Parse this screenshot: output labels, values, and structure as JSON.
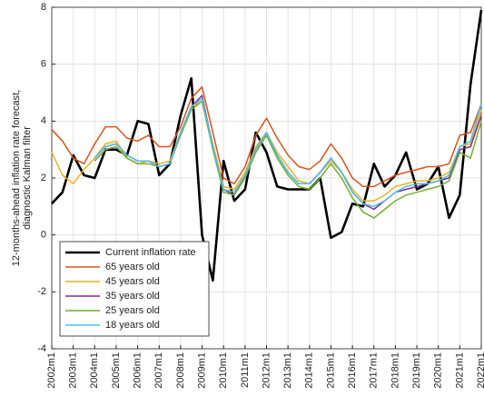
{
  "chart_data": {
    "type": "line",
    "ylabel": [
      "12-months-ahead inflation rate forecast,",
      "diagnostic Kalman filter"
    ],
    "x": [
      2002,
      2002.5,
      2003,
      2003.5,
      2004,
      2004.5,
      2005,
      2005.5,
      2006,
      2006.5,
      2007,
      2007.5,
      2008,
      2008.5,
      2009,
      2009.5,
      2010,
      2010.5,
      2011,
      2011.5,
      2012,
      2012.5,
      2013,
      2013.5,
      2014,
      2014.5,
      2015,
      2015.5,
      2016,
      2016.5,
      2017,
      2017.5,
      2018,
      2018.5,
      2019,
      2019.5,
      2020,
      2020.5,
      2021,
      2021.5,
      2022
    ],
    "series": [
      {
        "name": "Current inflation rate",
        "color": "#000000",
        "width": 2.6,
        "values": [
          1.1,
          1.5,
          2.8,
          2.1,
          2.0,
          3.0,
          3.0,
          2.8,
          4.0,
          3.9,
          2.1,
          2.5,
          4.2,
          5.5,
          0.0,
          -1.6,
          2.6,
          1.2,
          1.6,
          3.6,
          2.9,
          1.7,
          1.6,
          1.6,
          1.6,
          2.0,
          -0.1,
          0.1,
          1.1,
          1.0,
          2.5,
          1.7,
          2.1,
          2.9,
          1.6,
          1.8,
          2.4,
          0.6,
          1.4,
          5.3,
          7.9
        ]
      },
      {
        "name": "65 years old",
        "color": "#d95319",
        "width": 1.5,
        "values": [
          3.7,
          3.3,
          2.7,
          2.5,
          3.2,
          3.8,
          3.8,
          3.4,
          3.3,
          3.5,
          3.1,
          3.1,
          3.8,
          4.8,
          5.2,
          3.6,
          2.0,
          1.8,
          2.4,
          3.5,
          4.1,
          3.4,
          2.8,
          2.4,
          2.3,
          2.6,
          3.2,
          2.7,
          2.0,
          1.7,
          1.7,
          1.9,
          2.1,
          2.2,
          2.3,
          2.4,
          2.4,
          2.5,
          3.5,
          3.6,
          4.6
        ]
      },
      {
        "name": "45 years old",
        "color": "#edb120",
        "width": 1.5,
        "values": [
          2.9,
          2.1,
          1.8,
          2.3,
          2.7,
          3.2,
          3.3,
          2.7,
          2.5,
          2.6,
          2.5,
          2.6,
          3.6,
          4.5,
          4.7,
          3.2,
          1.7,
          1.6,
          2.2,
          3.1,
          3.6,
          2.9,
          2.4,
          1.9,
          1.8,
          2.2,
          2.6,
          2.2,
          1.6,
          1.2,
          1.2,
          1.4,
          1.7,
          1.8,
          1.9,
          1.9,
          2.0,
          2.2,
          3.1,
          3.2,
          4.4
        ]
      },
      {
        "name": "35 years old",
        "color": "#7e2f8e",
        "width": 1.5,
        "values": [
          null,
          null,
          null,
          null,
          2.7,
          3.1,
          3.2,
          2.8,
          2.6,
          2.6,
          2.4,
          2.5,
          3.6,
          4.5,
          4.9,
          3.1,
          1.6,
          1.4,
          2.1,
          3.0,
          3.6,
          2.8,
          2.2,
          1.8,
          1.8,
          2.2,
          2.7,
          2.2,
          1.5,
          1.1,
          0.9,
          1.2,
          1.5,
          1.6,
          1.7,
          1.8,
          1.9,
          2.0,
          3.0,
          3.1,
          4.2
        ]
      },
      {
        "name": "25 years old",
        "color": "#77ac30",
        "width": 1.5,
        "values": [
          null,
          null,
          null,
          null,
          2.6,
          3.0,
          3.1,
          2.7,
          2.5,
          2.5,
          2.4,
          2.5,
          3.5,
          4.4,
          4.7,
          3.0,
          1.5,
          1.4,
          2.0,
          2.9,
          3.5,
          2.7,
          2.1,
          1.7,
          1.6,
          2.0,
          2.5,
          2.0,
          1.3,
          0.8,
          0.6,
          0.9,
          1.2,
          1.4,
          1.5,
          1.6,
          1.7,
          1.9,
          2.9,
          2.7,
          4.0
        ]
      },
      {
        "name": "18 years old",
        "color": "#4dbeee",
        "width": 1.5,
        "values": [
          null,
          null,
          null,
          null,
          2.7,
          3.1,
          3.2,
          2.8,
          2.6,
          2.6,
          2.4,
          2.5,
          3.6,
          4.5,
          4.8,
          3.1,
          1.6,
          1.5,
          2.1,
          3.0,
          3.6,
          2.8,
          2.2,
          1.8,
          1.8,
          2.2,
          2.7,
          2.2,
          1.5,
          1.1,
          1.0,
          1.2,
          1.5,
          1.7,
          1.8,
          1.8,
          1.9,
          2.1,
          3.1,
          3.3,
          4.6
        ]
      }
    ],
    "xlim": [
      2002,
      2022
    ],
    "xticks": [
      {
        "value": 2002,
        "label": "2002m1"
      },
      {
        "value": 2003,
        "label": "2003m1"
      },
      {
        "value": 2004,
        "label": "2004m1"
      },
      {
        "value": 2005,
        "label": "2005m1"
      },
      {
        "value": 2006,
        "label": "2006m1"
      },
      {
        "value": 2007,
        "label": "2007m1"
      },
      {
        "value": 2008,
        "label": "2008m1"
      },
      {
        "value": 2009,
        "label": "2009m1"
      },
      {
        "value": 2010,
        "label": "2010m1"
      },
      {
        "value": 2011,
        "label": "2011m1"
      },
      {
        "value": 2012,
        "label": "2012m1"
      },
      {
        "value": 2013,
        "label": "2013m1"
      },
      {
        "value": 2014,
        "label": "2014m1"
      },
      {
        "value": 2015,
        "label": "2015m1"
      },
      {
        "value": 2016,
        "label": "2016m1"
      },
      {
        "value": 2017,
        "label": "2017m1"
      },
      {
        "value": 2018,
        "label": "2018m1"
      },
      {
        "value": 2019,
        "label": "2019m1"
      },
      {
        "value": 2020,
        "label": "2020m1"
      },
      {
        "value": 2021,
        "label": "2021m1"
      },
      {
        "value": 2022,
        "label": "2022m1"
      }
    ],
    "ylim": [
      -4,
      8
    ],
    "yticks": [
      -4,
      -2,
      0,
      2,
      4,
      6,
      8
    ],
    "grid": true,
    "legend": "lower left"
  }
}
